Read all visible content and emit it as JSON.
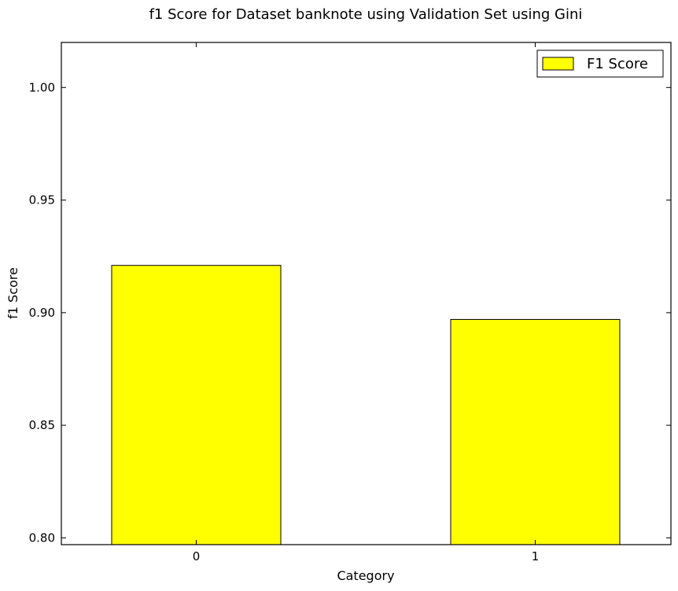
{
  "chart_data": {
    "type": "bar",
    "title": "f1 Score for Dataset banknote using Validation Set using Gini",
    "xlabel": "Category",
    "ylabel": "f1 Score",
    "categories": [
      "0",
      "1"
    ],
    "series": [
      {
        "name": "F1 Score",
        "values": [
          0.921,
          0.897
        ],
        "color": "#ffff00"
      }
    ],
    "ylim": [
      0.797,
      1.02
    ],
    "yticks": [
      "0.80",
      "0.85",
      "0.90",
      "0.95",
      "1.00"
    ],
    "ytick_values": [
      0.8,
      0.85,
      0.9,
      0.95,
      1.0
    ],
    "grid": false,
    "legend": "top-right"
  }
}
